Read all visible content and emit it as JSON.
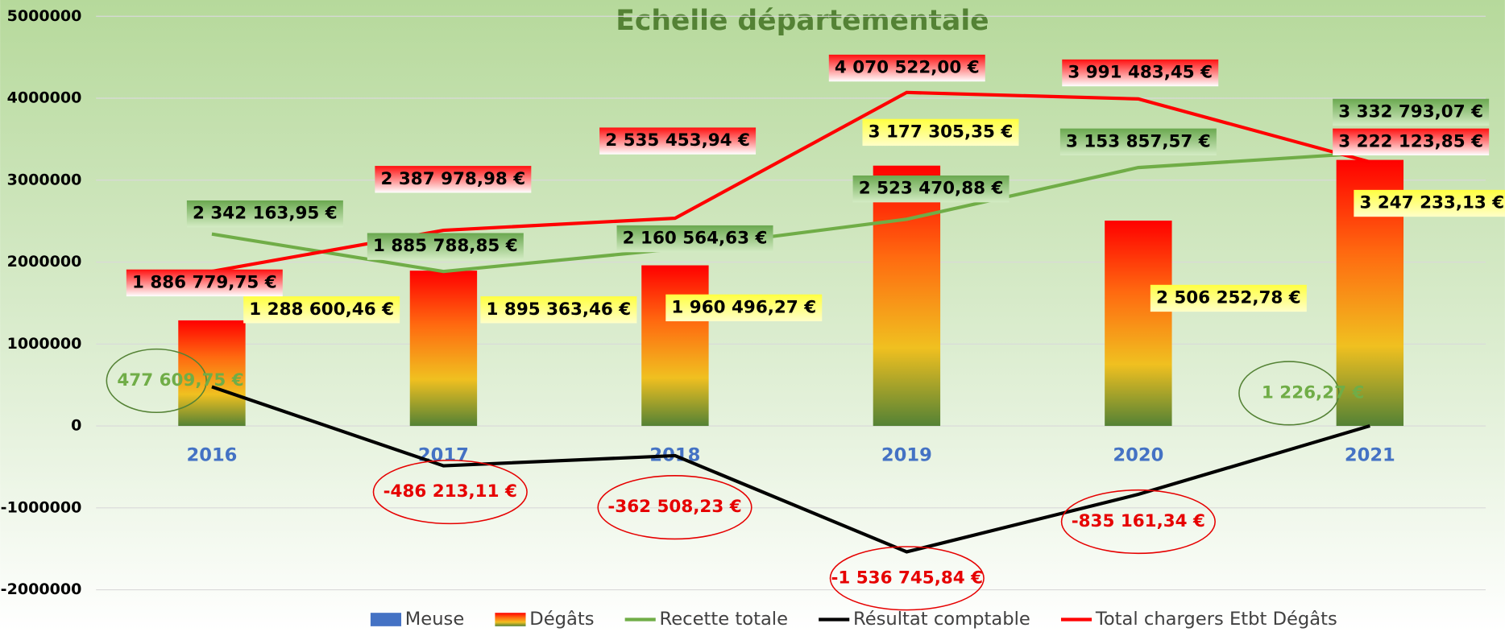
{
  "chart_data": {
    "type": "bar",
    "title": "Echelle départementale",
    "categories": [
      "2016",
      "2017",
      "2018",
      "2019",
      "2020",
      "2021"
    ],
    "ylim": [
      -2000000,
      5000000
    ],
    "yticks": [
      -2000000,
      -1000000,
      0,
      1000000,
      2000000,
      3000000,
      4000000,
      5000000
    ],
    "grid": true,
    "legend": "bottom",
    "series": [
      {
        "name": "Meuse",
        "type": "bar",
        "color": "#4472c4",
        "values": [
          null,
          null,
          null,
          null,
          null,
          null
        ]
      },
      {
        "name": "Dégâts",
        "type": "bar",
        "color": "#ff0000",
        "values": [
          1288600.46,
          1895363.46,
          1960496.27,
          3177305.35,
          2506252.78,
          3247233.13
        ],
        "value_labels": [
          "1 288 600,46 €",
          "1 895 363,46 €",
          "1 960 496,27 €",
          "3 177 305,35 €",
          "2 506 252,78 €",
          "3 247 233,13 €"
        ]
      },
      {
        "name": "Recette totale",
        "type": "line",
        "color": "#70ad47",
        "values": [
          2342163.95,
          1885788.85,
          2160564.63,
          2523470.88,
          3153857.57,
          3332793.07
        ],
        "value_labels": [
          "2 342 163,95 €",
          "1 885 788,85 €",
          "2 160 564,63 €",
          "2 523 470,88 €",
          "3 153 857,57 €",
          "3 332 793,07 €"
        ]
      },
      {
        "name": "Résultat comptable",
        "type": "line",
        "color": "#000000",
        "values": [
          477609.75,
          -486213.11,
          -362508.23,
          -1536745.84,
          -835161.34,
          1226.27
        ],
        "value_labels": [
          "477 609,75 €",
          "-486 213,11 €",
          "-362 508,23 €",
          "-1 536 745,84 €",
          "-835 161,34 €",
          "1 226,27 €"
        ]
      },
      {
        "name": "Total chargers Etbt Dégâts",
        "type": "line",
        "color": "#ff0000",
        "values": [
          1886779.75,
          2387978.98,
          2535453.94,
          4070522.0,
          3991483.45,
          3222123.85
        ],
        "value_labels": [
          "1 886 779,75 €",
          "2 387 978,98 €",
          "2 535 453,94 €",
          "4 070 522,00 €",
          "3 991 483,45 €",
          "3 222 123,85 €"
        ]
      }
    ]
  }
}
